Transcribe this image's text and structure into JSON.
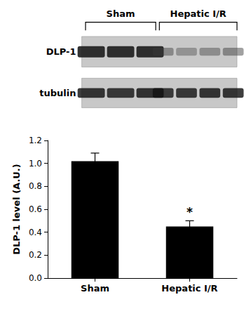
{
  "chart_data": {
    "type": "bar",
    "categories": [
      "Sham",
      "Hepatic I/R"
    ],
    "values": [
      1.02,
      0.45
    ],
    "errors": [
      0.07,
      0.05
    ],
    "color": "#000000",
    "ylabel": "DLP-1 level (A.U.)",
    "ylim": [
      0.0,
      1.2
    ],
    "yticks": [
      {
        "value": 0,
        "label": "0.0"
      },
      0.2,
      0.4,
      0.6,
      0.8,
      {
        "value": 1,
        "label": "1.0"
      },
      1.2
    ],
    "grid": false,
    "annotations": [
      {
        "text": "*",
        "category": "Hepatic I/R"
      }
    ],
    "blot": {
      "groups": [
        "Sham",
        "Hepatic I/R"
      ],
      "rows": [
        "DLP-1",
        "tubulin"
      ],
      "lanes": [
        3,
        4
      ]
    }
  }
}
